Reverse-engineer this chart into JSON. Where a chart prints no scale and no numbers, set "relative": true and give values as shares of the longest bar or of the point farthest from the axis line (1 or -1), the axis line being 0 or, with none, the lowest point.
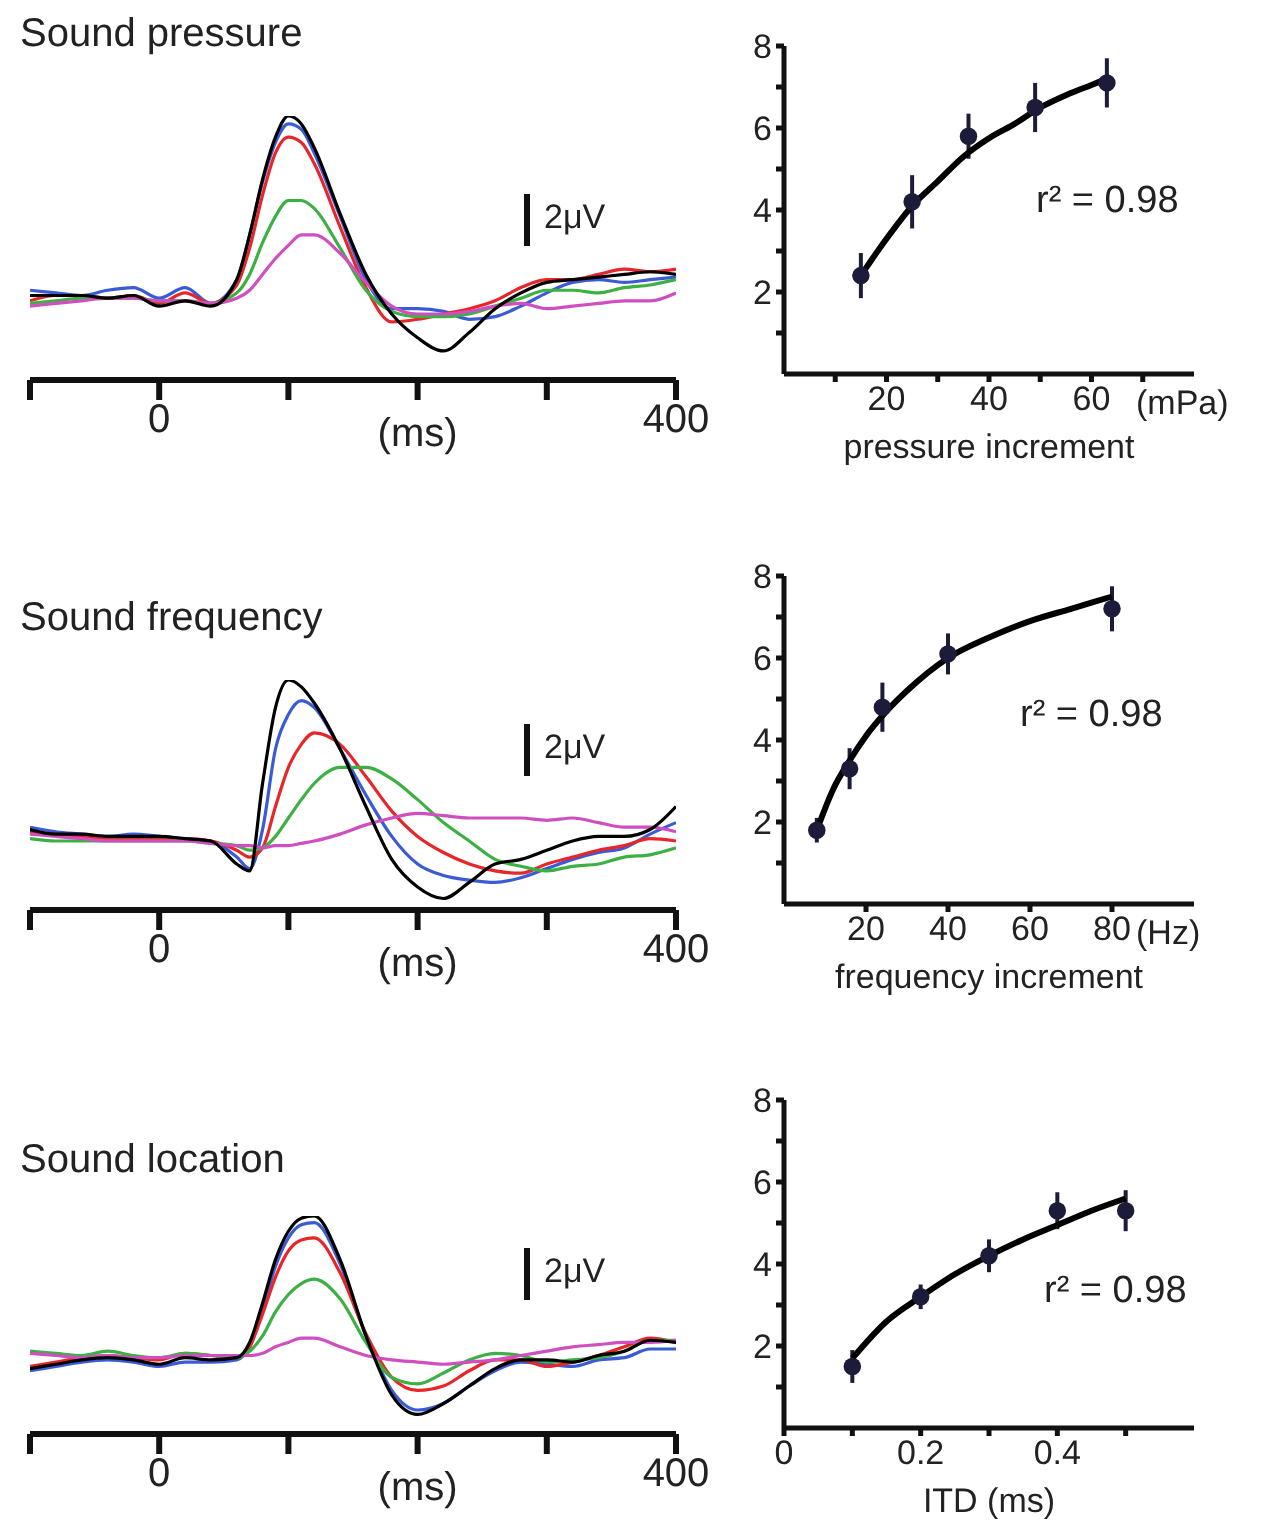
{
  "chart_data": [
    {
      "type": "line",
      "title": "Sound pressure",
      "xlabel": "(ms)",
      "relative": true,
      "xlim": [
        -100,
        400
      ],
      "xticks": [
        {
          "value": -100,
          "label": null
        },
        0,
        {
          "value": 100,
          "label": null
        },
        {
          "value": 200,
          "label": null
        },
        {
          "value": 300,
          "label": null
        },
        400
      ],
      "annotations": [
        "2μV"
      ],
      "x": [
        -100,
        -80,
        -60,
        -40,
        -20,
        0,
        20,
        40,
        60,
        70,
        80,
        90,
        100,
        110,
        120,
        140,
        160,
        180,
        200,
        220,
        240,
        260,
        280,
        300,
        320,
        340,
        360,
        380,
        400
      ],
      "series": [
        {
          "color": "#3b5bd6",
          "values": [
            0.34,
            0.33,
            0.32,
            0.34,
            0.35,
            0.31,
            0.35,
            0.29,
            0.38,
            0.55,
            0.75,
            0.9,
            0.97,
            0.95,
            0.86,
            0.62,
            0.38,
            0.27,
            0.27,
            0.26,
            0.23,
            0.24,
            0.28,
            0.33,
            0.37,
            0.38,
            0.37,
            0.38,
            0.39
          ]
        },
        {
          "color": "#e8262a",
          "values": [
            0.3,
            0.32,
            0.32,
            0.31,
            0.32,
            0.29,
            0.33,
            0.29,
            0.36,
            0.5,
            0.7,
            0.86,
            0.92,
            0.9,
            0.82,
            0.58,
            0.35,
            0.22,
            0.23,
            0.25,
            0.27,
            0.3,
            0.35,
            0.38,
            0.38,
            0.4,
            0.42,
            0.41,
            0.42
          ]
        },
        {
          "color": "#3cb043",
          "values": [
            0.29,
            0.3,
            0.31,
            0.31,
            0.31,
            0.3,
            0.3,
            0.29,
            0.33,
            0.4,
            0.52,
            0.62,
            0.68,
            0.68,
            0.65,
            0.5,
            0.34,
            0.26,
            0.24,
            0.24,
            0.25,
            0.28,
            0.31,
            0.34,
            0.34,
            0.33,
            0.35,
            0.36,
            0.38
          ]
        },
        {
          "color": "#d04fc0",
          "values": [
            0.28,
            0.29,
            0.3,
            0.31,
            0.31,
            0.3,
            0.3,
            0.29,
            0.31,
            0.34,
            0.4,
            0.46,
            0.51,
            0.55,
            0.55,
            0.48,
            0.37,
            0.28,
            0.25,
            0.25,
            0.26,
            0.28,
            0.29,
            0.27,
            0.28,
            0.29,
            0.3,
            0.3,
            0.33
          ]
        },
        {
          "color": "#000000",
          "values": [
            0.32,
            0.32,
            0.32,
            0.31,
            0.32,
            0.28,
            0.3,
            0.28,
            0.38,
            0.55,
            0.76,
            0.92,
            1.0,
            0.97,
            0.88,
            0.63,
            0.4,
            0.25,
            0.16,
            0.11,
            0.18,
            0.27,
            0.33,
            0.37,
            0.38,
            0.39,
            0.4,
            0.41,
            0.4
          ]
        }
      ]
    },
    {
      "type": "scatter",
      "xlabel": "pressure increment",
      "xlim": [
        0,
        80
      ],
      "xticks": [
        {
          "value": 10,
          "label": null
        },
        20,
        {
          "value": 30,
          "label": null
        },
        40,
        {
          "value": 50,
          "label": null
        },
        60,
        {
          "value": 70,
          "label": null
        }
      ],
      "ylim": [
        0,
        8
      ],
      "yticks": [
        {
          "value": 1,
          "label": null
        },
        2,
        {
          "value": 3,
          "label": null
        },
        4,
        {
          "value": 5,
          "label": null
        },
        6,
        {
          "value": 7,
          "label": null
        },
        8
      ],
      "marker": "circle",
      "annotations": [
        "r² = 0.98",
        "(mPa)"
      ],
      "series": [
        {
          "type": "scatter",
          "color": "#1c1c3a",
          "x": [
            15,
            25,
            36,
            49,
            63
          ],
          "values": [
            2.4,
            4.2,
            5.8,
            6.5,
            7.1
          ],
          "errors": [
            0.55,
            0.65,
            0.55,
            0.6,
            0.6
          ]
        },
        {
          "type": "line",
          "color": "#000000",
          "marker": "none",
          "x": [
            15,
            20,
            25,
            30,
            35,
            40,
            45,
            50,
            55,
            60,
            63
          ],
          "values": [
            2.4,
            3.3,
            4.1,
            4.7,
            5.3,
            5.75,
            6.1,
            6.5,
            6.8,
            7.05,
            7.2
          ]
        }
      ]
    },
    {
      "type": "line",
      "title": "Sound frequency",
      "xlabel": "(ms)",
      "relative": true,
      "xlim": [
        -100,
        400
      ],
      "xticks": [
        {
          "value": -100,
          "label": null
        },
        0,
        {
          "value": 100,
          "label": null
        },
        {
          "value": 200,
          "label": null
        },
        {
          "value": 300,
          "label": null
        },
        400
      ],
      "annotations": [
        "2μV"
      ],
      "x": [
        -100,
        -80,
        -60,
        -40,
        -20,
        0,
        20,
        40,
        60,
        70,
        80,
        90,
        100,
        110,
        120,
        140,
        160,
        180,
        200,
        220,
        240,
        260,
        280,
        300,
        320,
        340,
        360,
        380,
        400
      ],
      "series": [
        {
          "color": "#3b5bd6",
          "values": [
            0.36,
            0.34,
            0.33,
            0.32,
            0.33,
            0.32,
            0.31,
            0.3,
            0.23,
            0.18,
            0.35,
            0.7,
            0.85,
            0.91,
            0.88,
            0.7,
            0.5,
            0.32,
            0.2,
            0.15,
            0.13,
            0.12,
            0.14,
            0.18,
            0.22,
            0.25,
            0.27,
            0.33,
            0.38
          ]
        },
        {
          "color": "#e8262a",
          "values": [
            0.34,
            0.33,
            0.32,
            0.31,
            0.31,
            0.31,
            0.31,
            0.3,
            0.26,
            0.23,
            0.27,
            0.45,
            0.62,
            0.72,
            0.77,
            0.72,
            0.58,
            0.43,
            0.32,
            0.25,
            0.2,
            0.17,
            0.16,
            0.2,
            0.23,
            0.26,
            0.28,
            0.31,
            0.3
          ]
        },
        {
          "color": "#3cb043",
          "values": [
            0.31,
            0.3,
            0.3,
            0.3,
            0.3,
            0.3,
            0.3,
            0.29,
            0.28,
            0.26,
            0.27,
            0.32,
            0.4,
            0.48,
            0.55,
            0.62,
            0.62,
            0.57,
            0.48,
            0.38,
            0.3,
            0.22,
            0.19,
            0.17,
            0.19,
            0.2,
            0.23,
            0.24,
            0.27
          ]
        },
        {
          "color": "#d04fc0",
          "values": [
            0.33,
            0.32,
            0.31,
            0.3,
            0.3,
            0.3,
            0.3,
            0.29,
            0.28,
            0.28,
            0.27,
            0.28,
            0.28,
            0.29,
            0.3,
            0.33,
            0.37,
            0.4,
            0.42,
            0.41,
            0.4,
            0.4,
            0.4,
            0.39,
            0.4,
            0.38,
            0.36,
            0.36,
            0.34
          ]
        },
        {
          "color": "#000000",
          "values": [
            0.35,
            0.33,
            0.33,
            0.32,
            0.32,
            0.32,
            0.31,
            0.3,
            0.2,
            0.17,
            0.55,
            0.88,
            1.0,
            0.97,
            0.9,
            0.7,
            0.45,
            0.22,
            0.1,
            0.05,
            0.12,
            0.2,
            0.22,
            0.26,
            0.3,
            0.32,
            0.32,
            0.35,
            0.45
          ]
        }
      ]
    },
    {
      "type": "scatter",
      "xlabel": "frequency increment",
      "xlim": [
        0,
        100
      ],
      "xticks": [
        20,
        40,
        60,
        80
      ],
      "ylim": [
        0,
        8
      ],
      "yticks": [
        {
          "value": 1,
          "label": null
        },
        2,
        {
          "value": 3,
          "label": null
        },
        4,
        {
          "value": 5,
          "label": null
        },
        6,
        {
          "value": 7,
          "label": null
        },
        8
      ],
      "marker": "circle",
      "annotations": [
        "r² = 0.98",
        "(Hz)"
      ],
      "series": [
        {
          "type": "scatter",
          "color": "#1c1c3a",
          "x": [
            8,
            16,
            24,
            40,
            80
          ],
          "values": [
            1.8,
            3.3,
            4.8,
            6.1,
            7.2
          ],
          "errors": [
            0.3,
            0.5,
            0.6,
            0.5,
            0.55
          ]
        },
        {
          "type": "line",
          "color": "#000000",
          "marker": "none",
          "x": [
            8,
            12,
            16,
            20,
            25,
            30,
            40,
            50,
            60,
            70,
            80
          ],
          "values": [
            1.8,
            2.8,
            3.5,
            4.1,
            4.7,
            5.2,
            6.0,
            6.5,
            6.9,
            7.2,
            7.5
          ]
        }
      ]
    },
    {
      "type": "line",
      "title": "Sound location",
      "xlabel": "(ms)",
      "relative": true,
      "xlim": [
        -100,
        400
      ],
      "xticks": [
        {
          "value": -100,
          "label": null
        },
        0,
        {
          "value": 100,
          "label": null
        },
        {
          "value": 200,
          "label": null
        },
        {
          "value": 300,
          "label": null
        },
        400
      ],
      "annotations": [
        "2μV"
      ],
      "x": [
        -100,
        -80,
        -60,
        -40,
        -20,
        0,
        20,
        40,
        60,
        70,
        80,
        90,
        100,
        110,
        120,
        140,
        160,
        180,
        200,
        220,
        240,
        260,
        280,
        300,
        320,
        340,
        360,
        380,
        400
      ],
      "series": [
        {
          "color": "#3b5bd6",
          "values": [
            0.29,
            0.31,
            0.33,
            0.34,
            0.33,
            0.31,
            0.33,
            0.33,
            0.34,
            0.4,
            0.57,
            0.77,
            0.9,
            0.96,
            0.97,
            0.78,
            0.45,
            0.2,
            0.11,
            0.14,
            0.22,
            0.29,
            0.33,
            0.32,
            0.31,
            0.34,
            0.35,
            0.39,
            0.39
          ]
        },
        {
          "color": "#e8262a",
          "values": [
            0.31,
            0.33,
            0.35,
            0.36,
            0.35,
            0.34,
            0.37,
            0.36,
            0.35,
            0.4,
            0.55,
            0.72,
            0.84,
            0.89,
            0.9,
            0.74,
            0.46,
            0.26,
            0.2,
            0.22,
            0.29,
            0.34,
            0.34,
            0.31,
            0.33,
            0.36,
            0.4,
            0.44,
            0.42
          ]
        },
        {
          "color": "#3cb043",
          "values": [
            0.38,
            0.37,
            0.36,
            0.38,
            0.36,
            0.35,
            0.37,
            0.36,
            0.35,
            0.38,
            0.45,
            0.56,
            0.64,
            0.69,
            0.71,
            0.62,
            0.42,
            0.26,
            0.23,
            0.28,
            0.34,
            0.37,
            0.36,
            0.33,
            0.34,
            0.35,
            0.38,
            0.43,
            0.43
          ]
        },
        {
          "color": "#d04fc0",
          "values": [
            0.37,
            0.36,
            0.35,
            0.36,
            0.35,
            0.35,
            0.36,
            0.36,
            0.36,
            0.36,
            0.37,
            0.4,
            0.42,
            0.44,
            0.44,
            0.4,
            0.36,
            0.34,
            0.33,
            0.32,
            0.33,
            0.34,
            0.36,
            0.38,
            0.4,
            0.41,
            0.42,
            0.42,
            0.43
          ]
        },
        {
          "color": "#000000",
          "values": [
            0.3,
            0.32,
            0.34,
            0.35,
            0.34,
            0.32,
            0.35,
            0.34,
            0.35,
            0.42,
            0.6,
            0.8,
            0.93,
            0.99,
            1.0,
            0.8,
            0.45,
            0.18,
            0.09,
            0.14,
            0.22,
            0.3,
            0.34,
            0.34,
            0.33,
            0.36,
            0.38,
            0.43,
            0.42
          ]
        }
      ]
    },
    {
      "type": "scatter",
      "xlabel": "ITD (ms)",
      "xlim": [
        0,
        0.6
      ],
      "xticks": [
        0,
        {
          "value": 0.1,
          "label": null
        },
        0.2,
        {
          "value": 0.3,
          "label": null
        },
        0.4,
        {
          "value": 0.5,
          "label": null
        }
      ],
      "ylim": [
        0,
        8
      ],
      "yticks": [
        {
          "value": 1,
          "label": null
        },
        2,
        {
          "value": 3,
          "label": null
        },
        4,
        {
          "value": 5,
          "label": null
        },
        6,
        {
          "value": 7,
          "label": null
        },
        8
      ],
      "marker": "circle",
      "annotations": [
        "r² = 0.98"
      ],
      "series": [
        {
          "type": "scatter",
          "color": "#1c1c3a",
          "x": [
            0.1,
            0.2,
            0.3,
            0.4,
            0.5
          ],
          "values": [
            1.5,
            3.2,
            4.2,
            5.3,
            5.3
          ],
          "errors": [
            0.4,
            0.3,
            0.4,
            0.45,
            0.5
          ]
        },
        {
          "type": "line",
          "color": "#000000",
          "marker": "none",
          "x": [
            0.1,
            0.15,
            0.2,
            0.25,
            0.3,
            0.35,
            0.4,
            0.45,
            0.5
          ],
          "values": [
            1.7,
            2.6,
            3.2,
            3.75,
            4.2,
            4.6,
            4.95,
            5.3,
            5.6
          ]
        }
      ]
    }
  ]
}
